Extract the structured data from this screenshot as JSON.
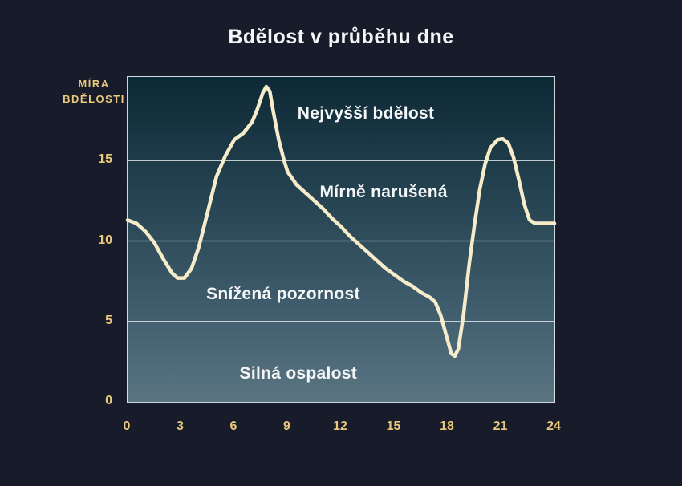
{
  "title": "Bdělost v průběhu dne",
  "y_axis_label": {
    "line1": "MÍRA",
    "line2": "BDĚLOSTI"
  },
  "colors": {
    "background": "#181c2a",
    "gold_text": "#e9c77c",
    "curve": "#f7ecca",
    "annotation_text": "#f4f6f7",
    "plot_gradient_top": "#0e2936",
    "plot_gradient_bottom": "#5a7481",
    "gridline": "#edf2f4",
    "plot_border": "#e1eaef"
  },
  "chart_data": {
    "type": "line",
    "title": "Bdělost v průběhu dne",
    "ylabel": "MÍRA BDĚLOSTI",
    "xlabel": "",
    "xlim": [
      0,
      24
    ],
    "ylim": [
      0,
      20.2
    ],
    "xticks": [
      0,
      3,
      6,
      9,
      12,
      15,
      18,
      21,
      24
    ],
    "yticks": [
      0,
      5,
      10,
      15
    ],
    "gridlines_y": [
      5,
      10,
      15
    ],
    "legend": "none",
    "series": [
      {
        "name": "bdelost",
        "points": [
          [
            0,
            11.3
          ],
          [
            0.5,
            11.1
          ],
          [
            1,
            10.6
          ],
          [
            1.5,
            9.9
          ],
          [
            2,
            8.9
          ],
          [
            2.5,
            8.0
          ],
          [
            2.8,
            7.7
          ],
          [
            3.2,
            7.7
          ],
          [
            3.6,
            8.3
          ],
          [
            4,
            9.6
          ],
          [
            4.5,
            11.8
          ],
          [
            5,
            14.0
          ],
          [
            5.5,
            15.3
          ],
          [
            6,
            16.3
          ],
          [
            6.5,
            16.7
          ],
          [
            7,
            17.4
          ],
          [
            7.3,
            18.2
          ],
          [
            7.6,
            19.2
          ],
          [
            7.8,
            19.6
          ],
          [
            8,
            19.3
          ],
          [
            8.2,
            18.0
          ],
          [
            8.5,
            16.3
          ],
          [
            8.8,
            15.0
          ],
          [
            9,
            14.3
          ],
          [
            9.5,
            13.5
          ],
          [
            10,
            13.0
          ],
          [
            10.5,
            12.5
          ],
          [
            11,
            12.0
          ],
          [
            11.5,
            11.4
          ],
          [
            12,
            10.9
          ],
          [
            12.5,
            10.3
          ],
          [
            13,
            9.8
          ],
          [
            13.5,
            9.3
          ],
          [
            14,
            8.8
          ],
          [
            14.5,
            8.3
          ],
          [
            15,
            7.9
          ],
          [
            15.5,
            7.5
          ],
          [
            16,
            7.2
          ],
          [
            16.5,
            6.8
          ],
          [
            17,
            6.5
          ],
          [
            17.3,
            6.2
          ],
          [
            17.6,
            5.4
          ],
          [
            18,
            3.8
          ],
          [
            18.2,
            3.0
          ],
          [
            18.4,
            2.85
          ],
          [
            18.6,
            3.3
          ],
          [
            18.9,
            5.5
          ],
          [
            19.2,
            8.5
          ],
          [
            19.5,
            11.0
          ],
          [
            19.8,
            13.2
          ],
          [
            20.1,
            14.8
          ],
          [
            20.4,
            15.8
          ],
          [
            20.8,
            16.3
          ],
          [
            21.1,
            16.35
          ],
          [
            21.4,
            16.1
          ],
          [
            21.7,
            15.2
          ],
          [
            22,
            13.8
          ],
          [
            22.3,
            12.3
          ],
          [
            22.6,
            11.3
          ],
          [
            22.9,
            11.1
          ],
          [
            23.4,
            11.1
          ],
          [
            24,
            11.1
          ]
        ]
      }
    ],
    "annotations": [
      {
        "label": "Nejvyšší bdělost",
        "x": 13.4,
        "y": 17.9
      },
      {
        "label": "Mírně narušená",
        "x": 14.4,
        "y": 13.0
      },
      {
        "label": "Snížená pozornost",
        "x": 8.75,
        "y": 6.7
      },
      {
        "label": "Silná ospalost",
        "x": 9.6,
        "y": 1.75
      }
    ]
  }
}
